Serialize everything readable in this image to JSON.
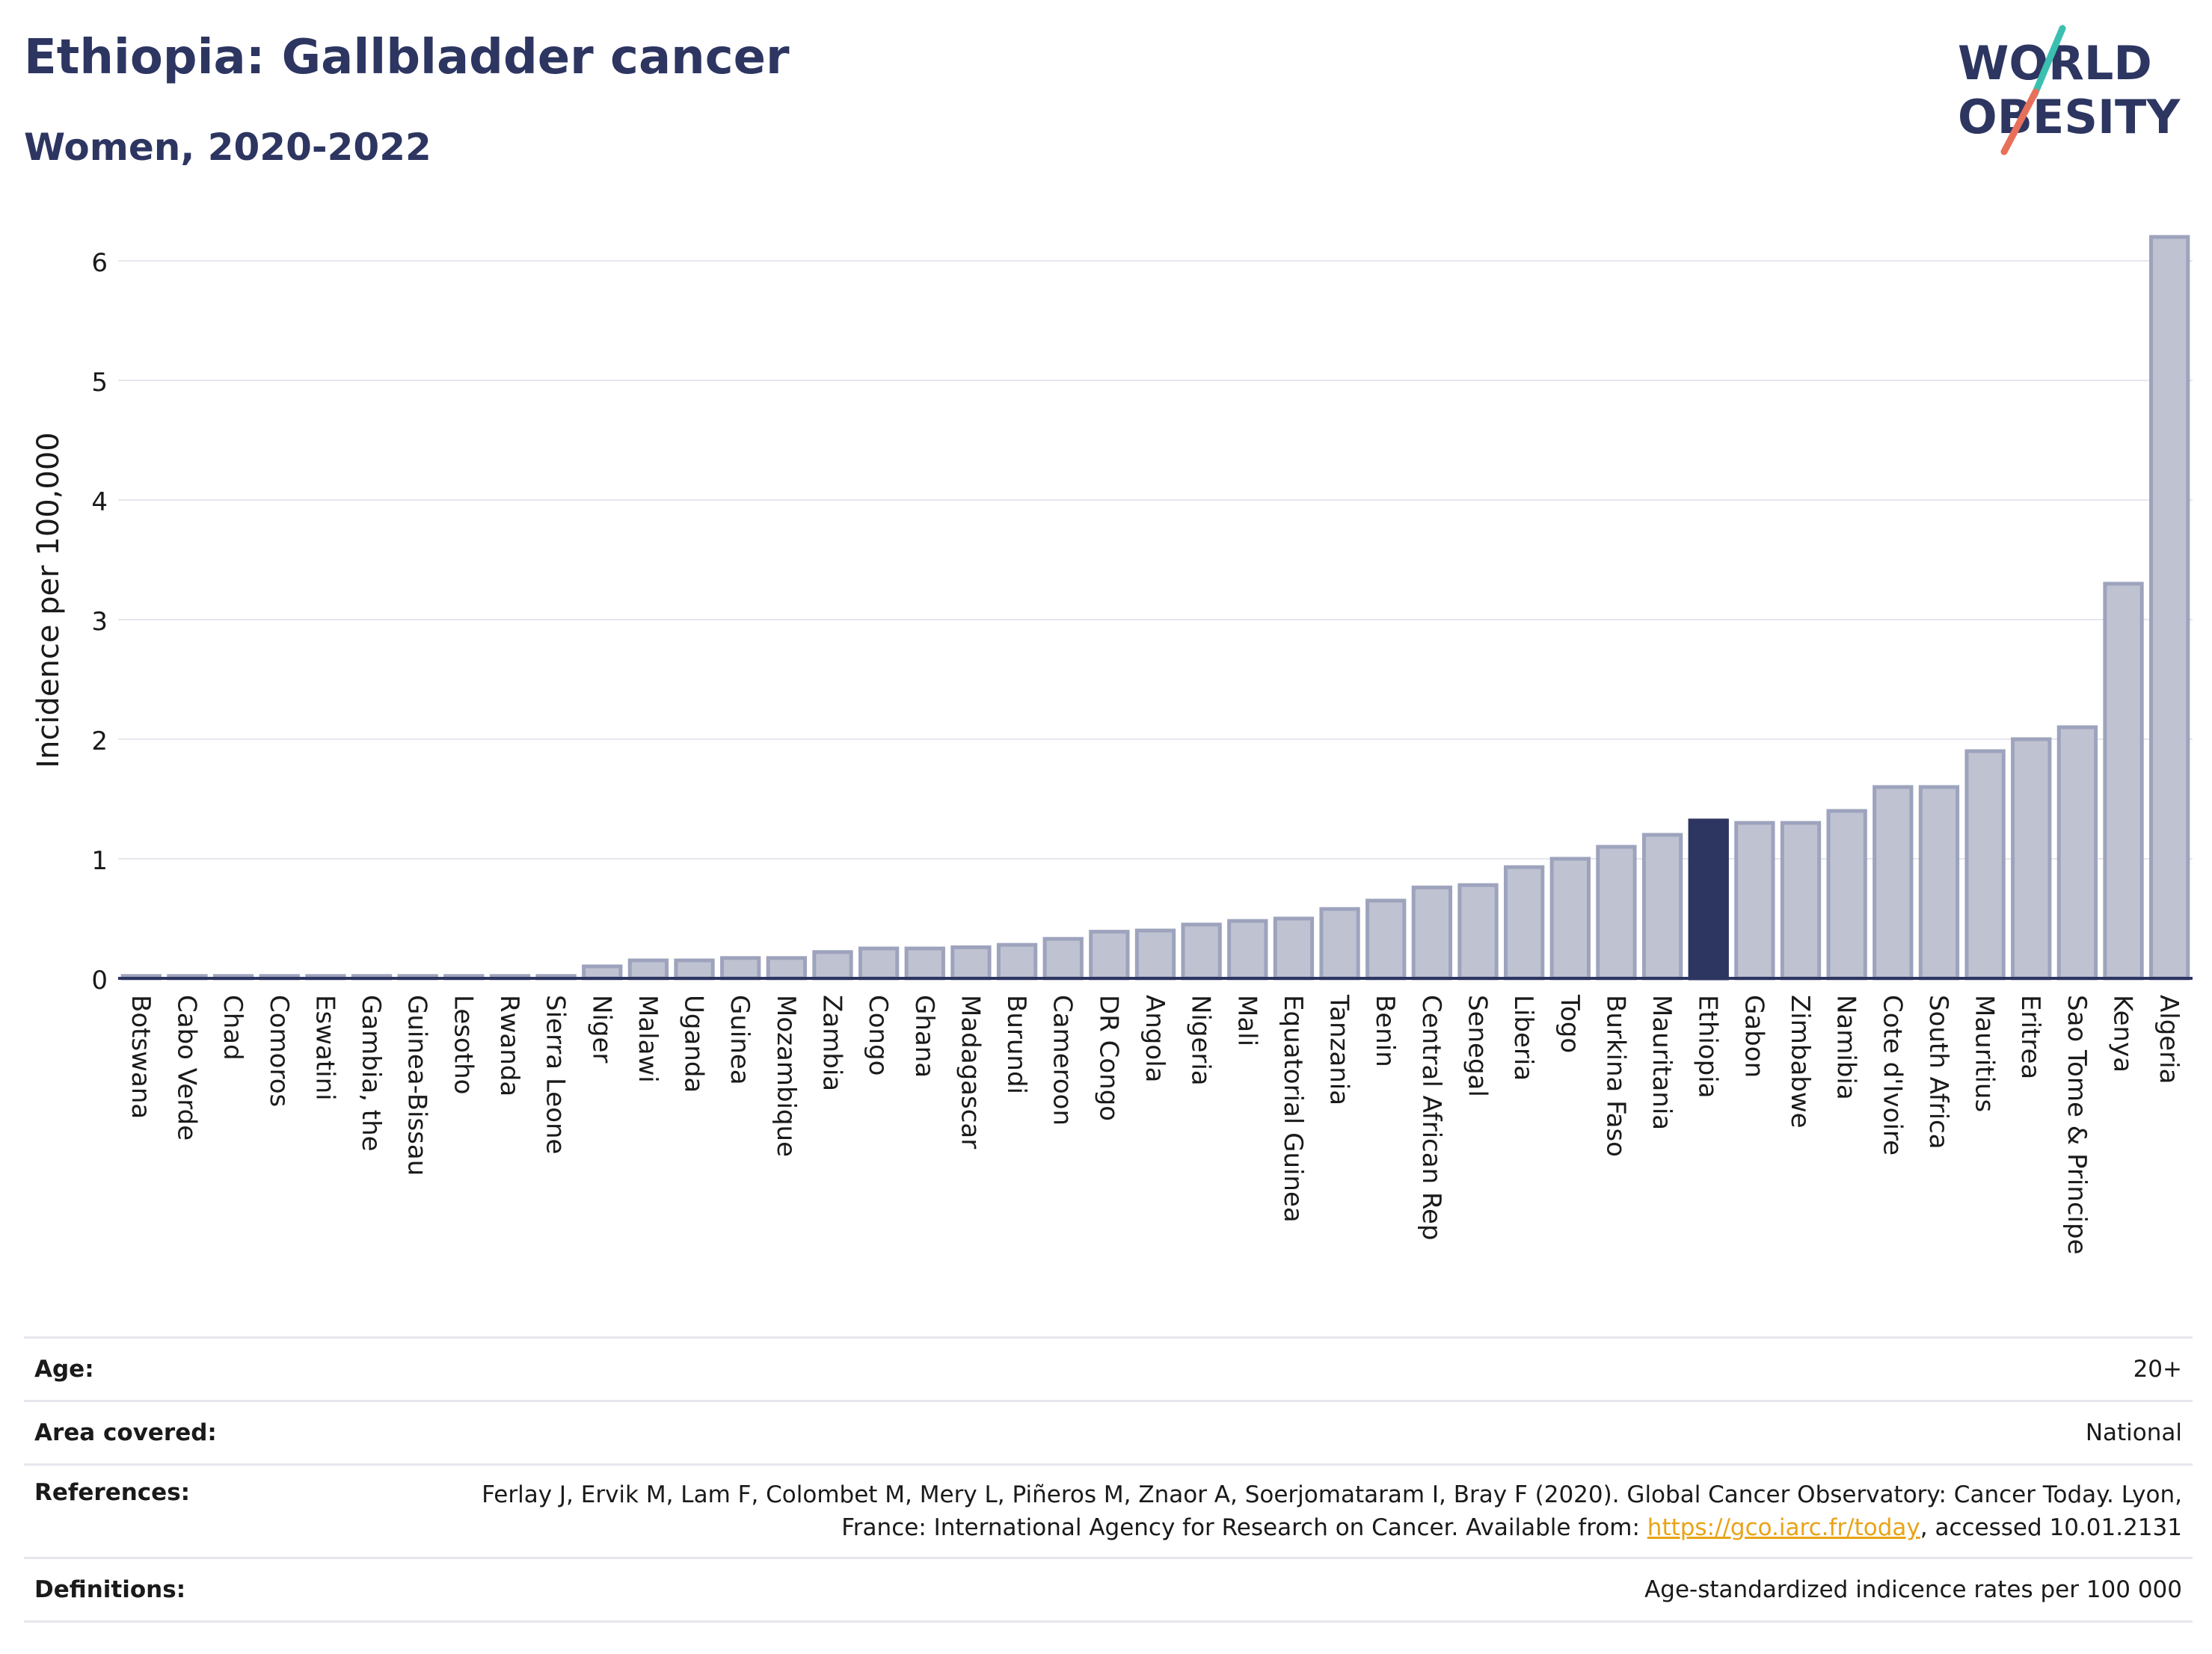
{
  "header": {
    "title": "Ethiopia: Gallbladder cancer",
    "subtitle": "Women, 2020-2022"
  },
  "logo": {
    "line1": "WORLD",
    "line2": "OBESITY"
  },
  "colors": {
    "bar_fill": "#bfc2d1",
    "bar_stroke": "#9ea3bd",
    "highlight": "#2d3561",
    "title": "#2d3561",
    "link": "#e8a317",
    "logo_teal": "#3bbfb0",
    "logo_coral": "#e8705a"
  },
  "chart_data": {
    "type": "bar",
    "ylabel": "Incidence per 100,000",
    "ylim": [
      0,
      6.35
    ],
    "yticks": [
      0,
      1,
      2,
      3,
      4,
      5,
      6
    ],
    "grid": true,
    "highlight": "Ethiopia",
    "categories": [
      "Botswana",
      "Cabo Verde",
      "Chad",
      "Comoros",
      "Eswatini",
      "Gambia, the",
      "Guinea-Bissau",
      "Lesotho",
      "Rwanda",
      "Sierra Leone",
      "Niger",
      "Malawi",
      "Uganda",
      "Guinea",
      "Mozambique",
      "Zambia",
      "Congo",
      "Ghana",
      "Madagascar",
      "Burundi",
      "Cameroon",
      "DR Congo",
      "Angola",
      "Nigeria",
      "Mali",
      "Equatorial Guinea",
      "Tanzania",
      "Benin",
      "Central African Rep",
      "Senegal",
      "Liberia",
      "Togo",
      "Burkina Faso",
      "Mauritania",
      "Ethiopia",
      "Gabon",
      "Zimbabwe",
      "Namibia",
      "Cote d'Ivoire",
      "South Africa",
      "Mauritius",
      "Eritrea",
      "Sao Tome & Principe",
      "Kenya",
      "Algeria"
    ],
    "values": [
      0.02,
      0.02,
      0.02,
      0.02,
      0.02,
      0.02,
      0.02,
      0.02,
      0.02,
      0.02,
      0.1,
      0.15,
      0.15,
      0.17,
      0.17,
      0.22,
      0.25,
      0.25,
      0.26,
      0.28,
      0.33,
      0.39,
      0.4,
      0.45,
      0.48,
      0.5,
      0.58,
      0.65,
      0.76,
      0.78,
      0.93,
      1.0,
      1.1,
      1.2,
      1.32,
      1.3,
      1.3,
      1.4,
      1.6,
      1.6,
      1.9,
      2.0,
      2.1,
      3.3,
      6.2
    ]
  },
  "footer": {
    "age_label": "Age:",
    "age_value": "20+",
    "area_label": "Area covered:",
    "area_value": "National",
    "references_label": "References:",
    "references_text": "Ferlay J, Ervik M, Lam F, Colombet M, Mery L, Piñeros M, Znaor A, Soerjomataram I, Bray F (2020). Global Cancer Observatory: Cancer Today. Lyon, France: International Agency for Research on Cancer. Available from: ",
    "references_link": "https://gco.iarc.fr/today",
    "references_tail": ", accessed 10.01.2131",
    "definitions_label": "Definitions:",
    "definitions_value": "Age-standardized indicence rates per 100 000"
  }
}
